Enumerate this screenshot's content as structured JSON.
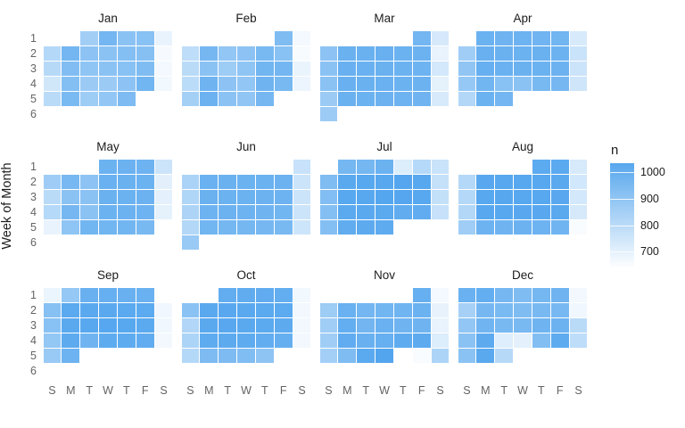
{
  "y_axis": {
    "title": "Week of Month",
    "ticks": [
      "1",
      "2",
      "3",
      "4",
      "5",
      "6"
    ]
  },
  "x_axis": {
    "ticks": [
      "S",
      "M",
      "T",
      "W",
      "T",
      "F",
      "S"
    ]
  },
  "legend": {
    "title": "n",
    "ticks": [
      1000,
      900,
      800,
      700
    ],
    "domain": [
      640,
      1035
    ],
    "high_color": "#479fed",
    "low_color": "#ffffff"
  },
  "chart_data": {
    "type": "heatmap",
    "facet_layout": {
      "columns": 4,
      "rows": 3
    },
    "value_name": "n",
    "facets": [
      {
        "name": "Jan",
        "grid": [
          [
            null,
            null,
            840,
            940,
            890,
            895,
            690
          ],
          [
            800,
            940,
            885,
            890,
            905,
            900,
            660
          ],
          [
            795,
            910,
            880,
            890,
            895,
            915,
            665
          ],
          [
            740,
            905,
            855,
            855,
            885,
            945,
            670
          ],
          [
            790,
            925,
            850,
            875,
            920,
            null,
            null
          ],
          [
            null,
            null,
            null,
            null,
            null,
            null,
            null
          ]
        ]
      },
      {
        "name": "Feb",
        "grid": [
          [
            null,
            null,
            null,
            null,
            null,
            915,
            665
          ],
          [
            780,
            935,
            875,
            885,
            930,
            895,
            655
          ],
          [
            790,
            890,
            850,
            880,
            945,
            940,
            685
          ],
          [
            785,
            950,
            885,
            875,
            950,
            930,
            680
          ],
          [
            835,
            955,
            890,
            878,
            935,
            null,
            null
          ],
          [
            null,
            null,
            null,
            null,
            null,
            null,
            null
          ]
        ]
      },
      {
        "name": "Mar",
        "grid": [
          [
            null,
            null,
            null,
            null,
            null,
            940,
            730
          ],
          [
            885,
            960,
            960,
            965,
            958,
            955,
            690
          ],
          [
            890,
            965,
            962,
            960,
            958,
            952,
            735
          ],
          [
            892,
            965,
            960,
            962,
            958,
            955,
            695
          ],
          [
            855,
            960,
            958,
            956,
            954,
            950,
            725
          ],
          [
            852,
            null,
            null,
            null,
            null,
            null,
            null
          ]
        ]
      },
      {
        "name": "Apr",
        "grid": [
          [
            null,
            958,
            950,
            952,
            948,
            945,
            725
          ],
          [
            845,
            965,
            960,
            958,
            960,
            955,
            755
          ],
          [
            878,
            968,
            962,
            960,
            958,
            955,
            750
          ],
          [
            865,
            945,
            895,
            890,
            930,
            935,
            745
          ],
          [
            805,
            958,
            940,
            null,
            null,
            null,
            null
          ],
          [
            null,
            null,
            null,
            null,
            null,
            null,
            null
          ]
        ]
      },
      {
        "name": "May",
        "grid": [
          [
            null,
            null,
            null,
            958,
            955,
            952,
            750
          ],
          [
            848,
            932,
            885,
            962,
            960,
            958,
            700
          ],
          [
            790,
            892,
            890,
            960,
            958,
            955,
            698
          ],
          [
            798,
            935,
            890,
            958,
            956,
            952,
            695
          ],
          [
            688,
            880,
            945,
            945,
            942,
            930,
            null
          ],
          [
            null,
            null,
            null,
            null,
            null,
            null,
            null
          ]
        ]
      },
      {
        "name": "Jun",
        "grid": [
          [
            null,
            null,
            null,
            null,
            null,
            null,
            760
          ],
          [
            820,
            962,
            960,
            958,
            958,
            955,
            752
          ],
          [
            810,
            960,
            958,
            958,
            956,
            952,
            752
          ],
          [
            815,
            952,
            955,
            952,
            950,
            942,
            750
          ],
          [
            805,
            945,
            938,
            938,
            935,
            930,
            748
          ],
          [
            860,
            null,
            null,
            null,
            null,
            null,
            null
          ]
        ]
      },
      {
        "name": "Jul",
        "grid": [
          [
            null,
            938,
            938,
            958,
            715,
            798,
            756
          ],
          [
            915,
            995,
            998,
            1000,
            1005,
            998,
            765
          ],
          [
            908,
            1000,
            1000,
            1008,
            1005,
            1000,
            768
          ],
          [
            905,
            992,
            995,
            992,
            982,
            980,
            762
          ],
          [
            903,
            982,
            988,
            985,
            null,
            null,
            null
          ],
          [
            null,
            null,
            null,
            null,
            null,
            null,
            null
          ]
        ]
      },
      {
        "name": "Aug",
        "grid": [
          [
            null,
            null,
            null,
            null,
            990,
            993,
            728
          ],
          [
            800,
            997,
            1000,
            998,
            1000,
            995,
            738
          ],
          [
            802,
            1000,
            1003,
            1000,
            1000,
            996,
            735
          ],
          [
            806,
            998,
            1000,
            997,
            997,
            995,
            730
          ],
          [
            846,
            952,
            950,
            956,
            952,
            948,
            652
          ],
          [
            null,
            null,
            null,
            null,
            null,
            null,
            null
          ]
        ]
      },
      {
        "name": "Sep",
        "grid": [
          [
            682,
            868,
            965,
            968,
            965,
            962,
            null
          ],
          [
            898,
            992,
            995,
            995,
            992,
            990,
            672
          ],
          [
            895,
            995,
            998,
            1002,
            998,
            992,
            672
          ],
          [
            872,
            988,
            950,
            985,
            985,
            980,
            668
          ],
          [
            860,
            954,
            null,
            null,
            null,
            null,
            null
          ],
          [
            null,
            null,
            null,
            null,
            null,
            null,
            null
          ]
        ]
      },
      {
        "name": "Oct",
        "grid": [
          [
            null,
            null,
            978,
            982,
            980,
            975,
            670
          ],
          [
            892,
            994,
            996,
            995,
            993,
            990,
            668
          ],
          [
            808,
            995,
            996,
            994,
            992,
            988,
            668
          ],
          [
            818,
            985,
            988,
            985,
            978,
            970,
            668
          ],
          [
            800,
            920,
            918,
            912,
            882,
            null,
            null
          ],
          [
            null,
            null,
            null,
            null,
            null,
            null,
            null
          ]
        ]
      },
      {
        "name": "Nov",
        "grid": [
          [
            null,
            null,
            null,
            null,
            null,
            968,
            665
          ],
          [
            850,
            962,
            940,
            942,
            946,
            958,
            692
          ],
          [
            846,
            975,
            943,
            962,
            950,
            950,
            688
          ],
          [
            845,
            980,
            965,
            968,
            984,
            988,
            715
          ],
          [
            838,
            916,
            992,
            1010,
            null,
            652,
            818
          ],
          [
            null,
            null,
            null,
            null,
            null,
            null,
            null
          ]
        ]
      },
      {
        "name": "Dec",
        "grid": [
          [
            962,
            975,
            935,
            915,
            938,
            950,
            668
          ],
          [
            832,
            935,
            925,
            915,
            928,
            932,
            672
          ],
          [
            875,
            946,
            930,
            928,
            950,
            956,
            788
          ],
          [
            890,
            988,
            710,
            698,
            906,
            986,
            780
          ],
          [
            890,
            994,
            795,
            null,
            null,
            null,
            null
          ],
          [
            null,
            null,
            null,
            null,
            null,
            null,
            null
          ]
        ]
      }
    ]
  }
}
